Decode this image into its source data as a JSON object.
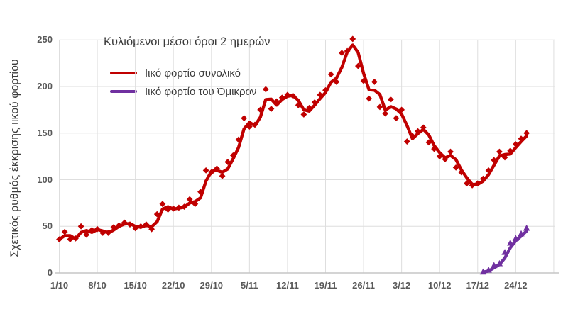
{
  "chart": {
    "title": "Κυλιόμενοι μέσοι όροι 2 ημερών",
    "y_axis_label": "Σχετικός ρυθμός έκκρισης ιικού φορτίου"
  },
  "chart_data": {
    "type": "line",
    "title": "Κυλιόμενοι μέσοι όροι 2 ημερών",
    "xlabel": "",
    "ylabel": "Σχετικός ρυθμός έκκρισης ιικού φορτίου",
    "ylim": [
      0,
      250
    ],
    "y_ticks": [
      0,
      50,
      100,
      150,
      200,
      250
    ],
    "x_tick_labels": [
      "1/10",
      "8/10",
      "15/10",
      "22/10",
      "29/10",
      "5/11",
      "12/11",
      "19/11",
      "26/11",
      "3/12",
      "10/12",
      "17/12",
      "24/12"
    ],
    "x_tick_interval_days": 7,
    "grid": true,
    "legend_position": "top-left-inside",
    "smoothing_note": "thick line = 2-day rolling average of the daily scatter points",
    "series": [
      {
        "name": "Ιικό φορτίο συνολικό",
        "color": "#c00000",
        "marker": "diamond",
        "start_date": "1/10",
        "end_date": "26/12",
        "start_day_index": 0,
        "frequency": "daily",
        "values": [
          36,
          44,
          36,
          37,
          50,
          41,
          46,
          47,
          43,
          43,
          49,
          51,
          54,
          52,
          48,
          50,
          52,
          47,
          63,
          74,
          68,
          69,
          70,
          71,
          79,
          74,
          87,
          110,
          108,
          112,
          104,
          119,
          126,
          143,
          166,
          157,
          159,
          175,
          197,
          176,
          184,
          188,
          191,
          190,
          180,
          170,
          177,
          183,
          191,
          196,
          213,
          205,
          236,
          238,
          251,
          222,
          206,
          187,
          205,
          178,
          171,
          186,
          166,
          175,
          141,
          147,
          152,
          156,
          140,
          133,
          125,
          122,
          130,
          113,
          108,
          96,
          94,
          96,
          101,
          110,
          121,
          130,
          124,
          131,
          138,
          144,
          150
        ]
      },
      {
        "name": "Ιικό φορτίο του Όμικρον",
        "color": "#7030a0",
        "marker": "triangle",
        "start_date": "18/12",
        "end_date": "26/12",
        "start_day_index": 78,
        "frequency": "daily",
        "values": [
          1,
          3,
          8,
          10,
          22,
          32,
          37,
          42,
          48
        ]
      }
    ]
  }
}
